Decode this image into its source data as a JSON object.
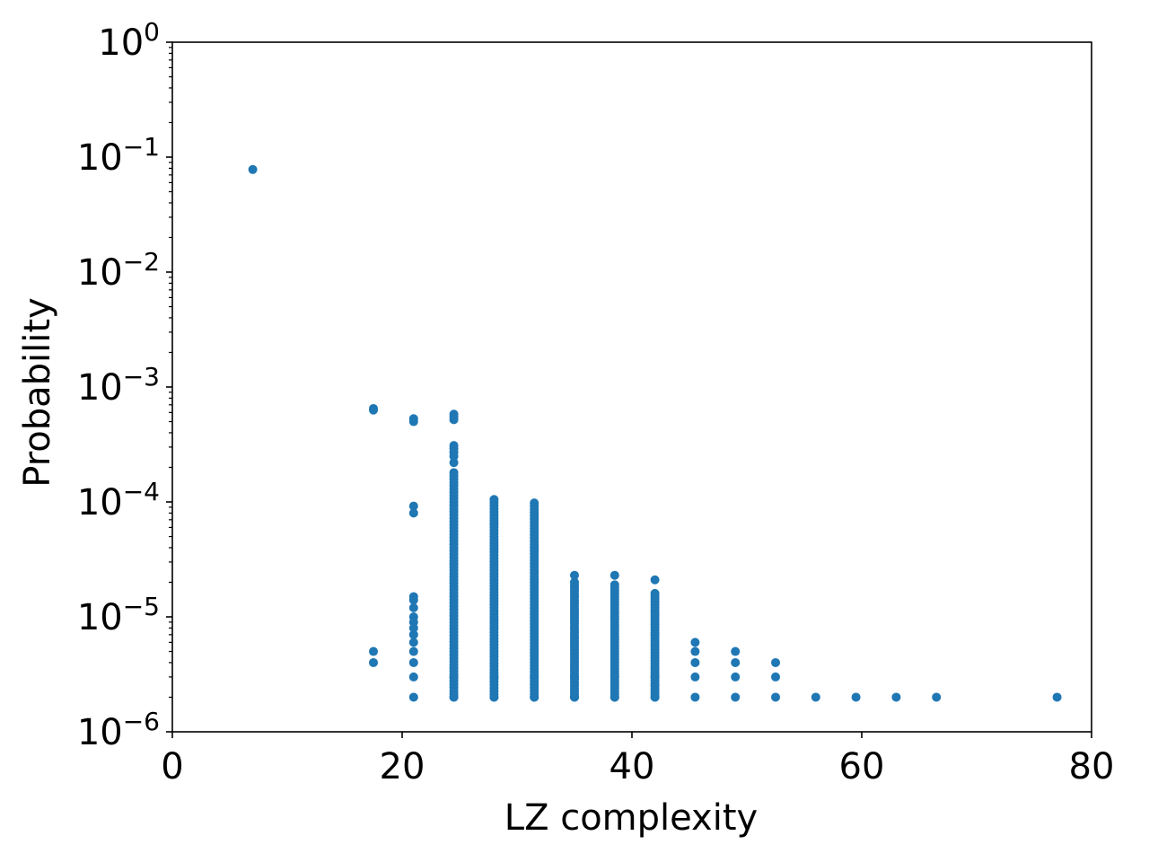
{
  "chart_data": {
    "type": "scatter",
    "title": "",
    "xlabel": "LZ complexity",
    "ylabel": "Probability",
    "xlim": [
      0,
      80
    ],
    "ylim": [
      1e-06,
      1
    ],
    "yscale": "log",
    "grid": false,
    "marker_color": "#1f77b4",
    "x_ticks": [
      {
        "value": 0,
        "label": "0"
      },
      {
        "value": 20,
        "label": "20"
      },
      {
        "value": 40,
        "label": "40"
      },
      {
        "value": 60,
        "label": "60"
      },
      {
        "value": 80,
        "label": "80"
      }
    ],
    "y_ticks": [
      {
        "value": 1e-06,
        "base": "10",
        "exp": "−6"
      },
      {
        "value": 1e-05,
        "base": "10",
        "exp": "−5"
      },
      {
        "value": 0.0001,
        "base": "10",
        "exp": "−4"
      },
      {
        "value": 0.001,
        "base": "10",
        "exp": "−3"
      },
      {
        "value": 0.01,
        "base": "10",
        "exp": "−2"
      },
      {
        "value": 0.1,
        "base": "10",
        "exp": "−1"
      },
      {
        "value": 1,
        "base": "10",
        "exp": "0"
      }
    ],
    "columns": [
      {
        "x": 7.0,
        "y": [
          0.078
        ]
      },
      {
        "x": 17.5,
        "y": [
          0.00063,
          0.00065,
          5e-06,
          4e-06
        ]
      },
      {
        "x": 21.0,
        "y": [
          0.0005,
          0.00053,
          9.2e-05,
          8e-05,
          1.5e-05,
          1.4e-05,
          1.2e-05,
          1e-05,
          9e-06,
          8e-06,
          7e-06,
          6e-06,
          5e-06,
          4e-06,
          3e-06,
          2e-06
        ]
      },
      {
        "x": 24.5,
        "dense": {
          "min": 2e-06,
          "max": 0.00018,
          "n": 70
        },
        "y": [
          0.00058,
          0.00055,
          0.00052,
          0.00031,
          0.00029,
          0.00027,
          0.00025,
          0.00022,
          2e-06,
          3e-06
        ]
      },
      {
        "x": 28.0,
        "dense": {
          "min": 2e-06,
          "max": 0.000105,
          "n": 65
        },
        "y": [
          2e-06,
          3e-06
        ]
      },
      {
        "x": 31.5,
        "dense": {
          "min": 2e-06,
          "max": 9.8e-05,
          "n": 62
        },
        "y": [
          2e-06,
          3e-06
        ]
      },
      {
        "x": 35.0,
        "dense": {
          "min": 2e-06,
          "max": 2e-05,
          "n": 40
        },
        "y": [
          2.3e-05,
          2e-06,
          3e-06
        ]
      },
      {
        "x": 38.5,
        "dense": {
          "min": 2e-06,
          "max": 1.9e-05,
          "n": 40
        },
        "y": [
          2.3e-05,
          2e-06,
          3e-06
        ]
      },
      {
        "x": 42.0,
        "dense": {
          "min": 2e-06,
          "max": 1.6e-05,
          "n": 38
        },
        "y": [
          2.1e-05,
          2e-06,
          3e-06
        ]
      },
      {
        "x": 45.5,
        "y": [
          6e-06,
          5e-06,
          4e-06,
          3e-06,
          2e-06
        ]
      },
      {
        "x": 49.0,
        "y": [
          5e-06,
          4e-06,
          3e-06,
          2e-06
        ]
      },
      {
        "x": 52.5,
        "y": [
          4e-06,
          3e-06,
          2e-06
        ]
      },
      {
        "x": 56.0,
        "y": [
          2e-06
        ]
      },
      {
        "x": 59.5,
        "y": [
          2e-06
        ]
      },
      {
        "x": 63.0,
        "y": [
          2e-06
        ]
      },
      {
        "x": 66.5,
        "y": [
          2e-06
        ]
      },
      {
        "x": 77.0,
        "y": [
          2e-06
        ]
      }
    ]
  }
}
